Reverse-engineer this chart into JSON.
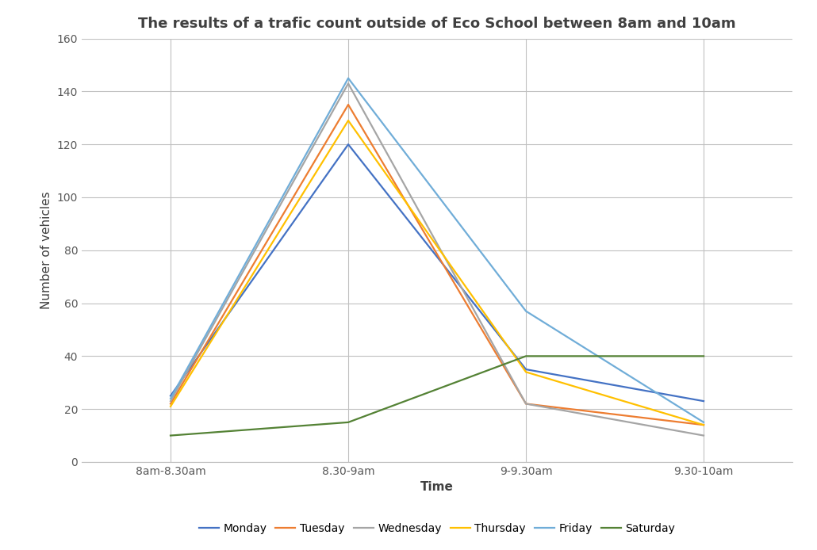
{
  "title": "The results of a trafic count outside of Eco School between 8am and 10am",
  "xlabel": "Time",
  "ylabel": "Number of vehicles",
  "x_labels": [
    "8am-8.30am",
    "8.30-9am",
    "9-9.30am",
    "9.30-10am"
  ],
  "ylim": [
    0,
    160
  ],
  "yticks": [
    0,
    20,
    40,
    60,
    80,
    100,
    120,
    140,
    160
  ],
  "series": [
    {
      "label": "Monday",
      "color": "#4472C4",
      "values": [
        25,
        120,
        35,
        23
      ]
    },
    {
      "label": "Tuesday",
      "color": "#ED7D31",
      "values": [
        22,
        135,
        22,
        14
      ]
    },
    {
      "label": "Wednesday",
      "color": "#A5A5A5",
      "values": [
        23,
        143,
        22,
        10
      ]
    },
    {
      "label": "Thursday",
      "color": "#FFC000",
      "values": [
        21,
        129,
        34,
        14
      ]
    },
    {
      "label": "Friday",
      "color": "#70ADD8",
      "values": [
        24,
        145,
        57,
        15
      ]
    },
    {
      "label": "Saturday",
      "color": "#548235",
      "values": [
        10,
        15,
        40,
        40
      ]
    }
  ],
  "plot_bg_color": "#FFFFFF",
  "fig_bg_color": "#FFFFFF",
  "grid_color": "#C0C0C0",
  "title_fontsize": 13,
  "axis_label_fontsize": 11,
  "tick_fontsize": 10,
  "legend_fontsize": 10,
  "line_width": 1.6
}
